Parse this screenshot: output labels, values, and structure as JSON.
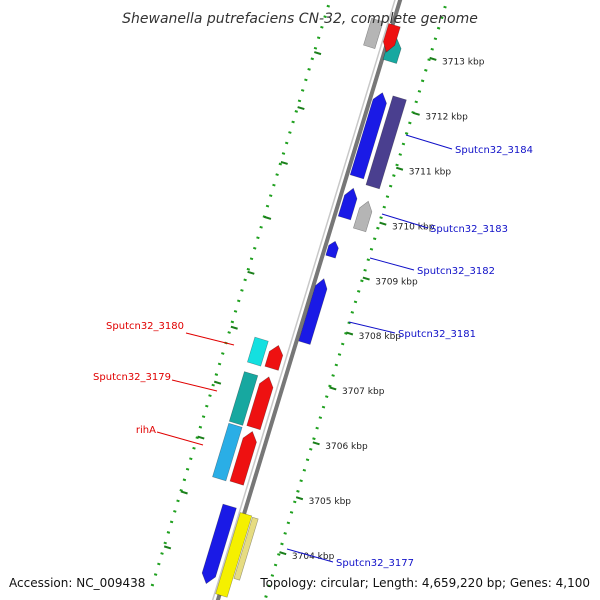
{
  "title": "Shewanella putrefaciens CN-32, complete genome",
  "footer": {
    "accession": "Accession: NC_009438",
    "topology": "Topology: circular; Length: 4,659,220 bp; Genes: 4,100"
  },
  "ticks": [
    "3713 kbp",
    "3712 kbp",
    "3711 kbp",
    "3710 kbp",
    "3709 kbp",
    "3708 kbp",
    "3707 kbp",
    "3706 kbp",
    "3705 kbp",
    "3704 kbp"
  ],
  "gene_labels_right": [
    "Sputcn32_3184",
    "Sputcn32_3183",
    "Sputcn32_3182",
    "Sputcn32_3181",
    "Sputcn32_3177"
  ],
  "gene_labels_left": [
    "Sputcn32_3180",
    "Sputcn32_3179",
    "rihA"
  ],
  "colors": {
    "backbone": "#777777",
    "tick_ring": "#1b7f1b",
    "dotted_ring": "#1fa01f",
    "right_label": "#1010c8",
    "left_label": "#e00000",
    "blue": "#1a1ae6",
    "navy": "#4a3f8f",
    "gray": "#b5b5b5",
    "red": "#ee1111",
    "cyan": "#14e0e0",
    "teal": "#17a8a0",
    "sky": "#2aaee6",
    "yellow": "#f5f000",
    "khaki": "#e6dc82"
  }
}
